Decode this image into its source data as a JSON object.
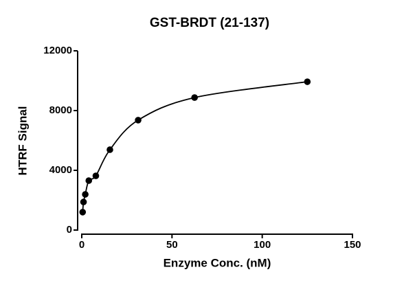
{
  "chart_data": {
    "type": "scatter",
    "title": "GST-BRDT (21-137)",
    "x_label": "Enzyme Conc. (nM)",
    "y_label": "HTRF Signal",
    "x": [
      0.49,
      0.98,
      1.95,
      3.9,
      7.8,
      15.6,
      31.25,
      62.5,
      125
    ],
    "series": [
      {
        "color": "#000000",
        "values": [
          1200,
          1880,
          2390,
          3310,
          3630,
          5380,
          7360,
          8870,
          9930
        ]
      }
    ],
    "xlim": [
      0,
      150
    ],
    "xticks": [
      0,
      50,
      100,
      150
    ],
    "ylim": [
      0,
      12000
    ],
    "yticks": [
      0,
      4000,
      8000,
      12000
    ]
  }
}
